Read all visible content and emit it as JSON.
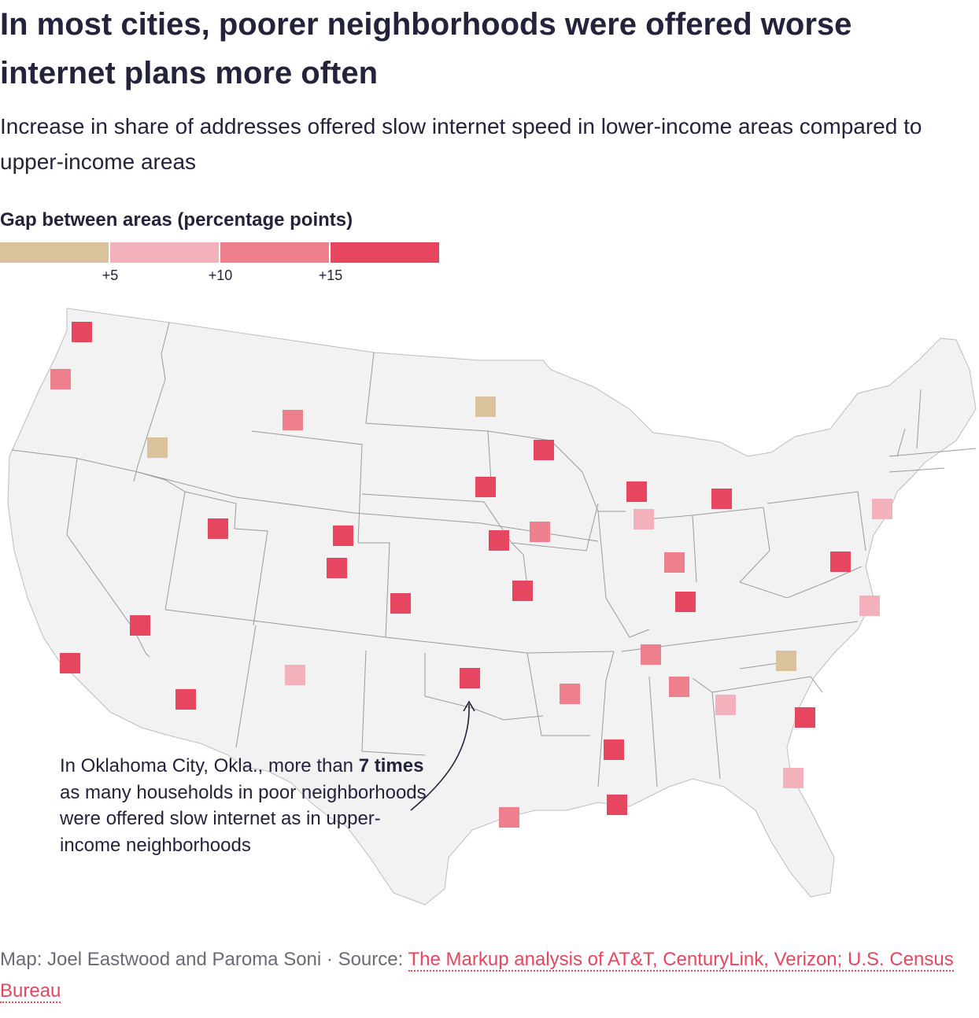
{
  "title": "In most cities, poorer neighborhoods were offered worse internet plans more often",
  "subtitle": "Increase in share of addresses offered slow internet speed in lower-income areas compared to upper-income areas",
  "legend": {
    "title": "Gap between areas (percentage points)",
    "bins": [
      {
        "color": "#d9c29c"
      },
      {
        "color": "#f3b2bb"
      },
      {
        "color": "#ee7f8c"
      },
      {
        "color": "#e6465f"
      }
    ],
    "ticks": [
      "+5",
      "+10",
      "+15"
    ]
  },
  "colors": {
    "land": "#f2f2f2",
    "border": "#9a9a9a",
    "text": "#23233b",
    "link": "#e6465f"
  },
  "cities": [
    {
      "id": "seattle",
      "bin": 3
    },
    {
      "id": "portland",
      "bin": 2
    },
    {
      "id": "boise",
      "bin": 0
    },
    {
      "id": "billings",
      "bin": 2
    },
    {
      "id": "fargo",
      "bin": 0
    },
    {
      "id": "minneapolis",
      "bin": 3
    },
    {
      "id": "sioux-falls",
      "bin": 3
    },
    {
      "id": "salt-lake-city",
      "bin": 3
    },
    {
      "id": "cheyenne",
      "bin": 3
    },
    {
      "id": "denver",
      "bin": 3
    },
    {
      "id": "omaha",
      "bin": 3
    },
    {
      "id": "des-moines",
      "bin": 2
    },
    {
      "id": "milwaukee",
      "bin": 3
    },
    {
      "id": "chicago",
      "bin": 1
    },
    {
      "id": "detroit",
      "bin": 3
    },
    {
      "id": "indianapolis",
      "bin": 2
    },
    {
      "id": "kansas-city",
      "bin": 3
    },
    {
      "id": "wichita",
      "bin": 3
    },
    {
      "id": "las-vegas",
      "bin": 3
    },
    {
      "id": "los-angeles",
      "bin": 3
    },
    {
      "id": "phoenix",
      "bin": 3
    },
    {
      "id": "albuquerque",
      "bin": 1
    },
    {
      "id": "oklahoma-city",
      "bin": 3
    },
    {
      "id": "little-rock",
      "bin": 2
    },
    {
      "id": "louisville",
      "bin": 3
    },
    {
      "id": "nashville",
      "bin": 2
    },
    {
      "id": "birmingham",
      "bin": 2
    },
    {
      "id": "atlanta",
      "bin": 1
    },
    {
      "id": "jackson",
      "bin": 3
    },
    {
      "id": "new-orleans",
      "bin": 3
    },
    {
      "id": "houston",
      "bin": 2
    },
    {
      "id": "charlotte",
      "bin": 0
    },
    {
      "id": "charleston",
      "bin": 3
    },
    {
      "id": "jacksonville",
      "bin": 1
    },
    {
      "id": "virginia-beach",
      "bin": 1
    },
    {
      "id": "washington-dc",
      "bin": 3
    },
    {
      "id": "new-york",
      "bin": 1
    }
  ],
  "annotation": {
    "text_before": "In Oklahoma City, Okla., more than ",
    "bold": "7 times",
    "text_after": " as many households in poor neighborhoods were offered slow internet as in upper-income neighborhoods"
  },
  "footer": {
    "credit": "Map: Joel Eastwood and Paroma Soni · Source: ",
    "source_link": "The Markup analysis of AT&T, CenturyLink, Verizon; U.S. Census Bureau"
  }
}
